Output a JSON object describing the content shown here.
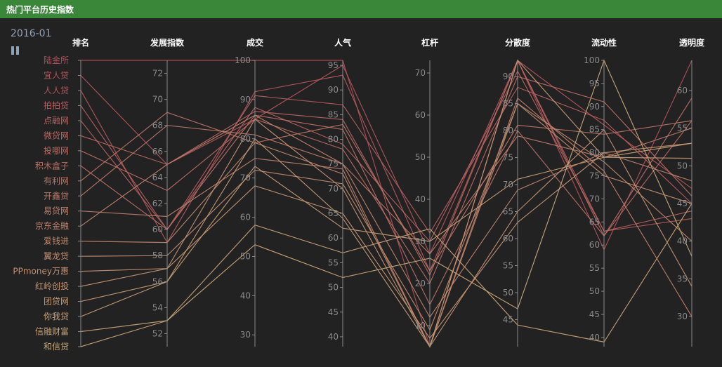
{
  "app": {
    "title": "热门平台历史指数"
  },
  "timeline": {
    "current": "2016-01",
    "pause_icon": "pause-icon"
  },
  "colors": {
    "titlebar": "#3a873a",
    "background": "#222222",
    "axis": "#8a8a8a",
    "header": "#ffffff",
    "line_high": "#b0505a",
    "line_low": "#c8a87a"
  },
  "chart_data": {
    "type": "parallel",
    "title": "",
    "axes": [
      {
        "name": "排名",
        "type": "category",
        "categories": [
          "陆金所",
          "宜人贷",
          "人人贷",
          "拍拍贷",
          "点融网",
          "微贷网",
          "投哪网",
          "积木盒子",
          "有利网",
          "开鑫贷",
          "易贷网",
          "京东金融",
          "爱钱进",
          "翼龙贷",
          "PPmoney万惠",
          "红岭创投",
          "团贷网",
          "你我贷",
          "信融财富",
          "和信贷"
        ]
      },
      {
        "name": "发展指数",
        "min": 51,
        "max": 73,
        "ticks": [
          52,
          54,
          56,
          58,
          60,
          62,
          64,
          66,
          68,
          70,
          72
        ]
      },
      {
        "name": "成交",
        "min": 27,
        "max": 100,
        "ticks": [
          30,
          40,
          50,
          60,
          70,
          80,
          90,
          100
        ]
      },
      {
        "name": "人气",
        "min": 38,
        "max": 96,
        "ticks": [
          40,
          45,
          50,
          55,
          60,
          65,
          70,
          75,
          80,
          85,
          90,
          95
        ]
      },
      {
        "name": "杠杆",
        "min": 5,
        "max": 73,
        "ticks": [
          10,
          20,
          30,
          40,
          50,
          60,
          70
        ]
      },
      {
        "name": "分散度",
        "min": 40,
        "max": 93,
        "ticks": [
          45,
          50,
          55,
          60,
          65,
          70,
          75,
          80,
          85,
          90
        ]
      },
      {
        "name": "流动性",
        "min": 38,
        "max": 100,
        "ticks": [
          40,
          45,
          50,
          55,
          60,
          65,
          70,
          75,
          80,
          85,
          90,
          95,
          100
        ]
      },
      {
        "name": "透明度",
        "min": 26,
        "max": 64,
        "ticks": [
          30,
          35,
          40,
          45,
          50,
          55,
          60
        ]
      }
    ],
    "series": [
      {
        "values": [
          0,
          73,
          100,
          96,
          5,
          93,
          59,
          64
        ]
      },
      {
        "values": [
          1,
          65,
          85,
          95,
          27,
          93,
          86,
          47
        ]
      },
      {
        "values": [
          2,
          59,
          92,
          93,
          23,
          93,
          63,
          43
        ]
      },
      {
        "values": [
          3,
          60,
          91,
          87,
          32,
          88,
          87,
          45
        ]
      },
      {
        "values": [
          4,
          60,
          88,
          79,
          30,
          91,
          63,
          44
        ]
      },
      {
        "values": [
          5,
          65,
          87,
          84,
          22,
          93,
          62,
          56
        ]
      },
      {
        "values": [
          6,
          63,
          85,
          78,
          20,
          90,
          91,
          46
        ]
      },
      {
        "values": [
          7,
          60,
          86,
          82,
          15,
          80,
          62,
          59
        ]
      },
      {
        "values": [
          8,
          69,
          79,
          83,
          23,
          81,
          84,
          56
        ]
      },
      {
        "values": [
          9,
          68,
          81,
          75,
          27,
          79,
          79,
          55
        ]
      },
      {
        "values": [
          10,
          61,
          75,
          74,
          5,
          86,
          76,
          30
        ]
      },
      {
        "values": [
          11,
          65,
          86,
          75,
          12,
          69,
          80,
          48
        ]
      },
      {
        "values": [
          12,
          59,
          79,
          73,
          5,
          85,
          78,
          40
        ]
      },
      {
        "values": [
          13,
          58,
          72,
          71,
          9,
          85,
          75,
          45
        ]
      },
      {
        "values": [
          14,
          57,
          85,
          70,
          5,
          65,
          85,
          34
        ]
      },
      {
        "values": [
          15,
          57,
          68,
          65,
          7,
          63,
          80,
          53
        ]
      },
      {
        "values": [
          16,
          56,
          80,
          64,
          5,
          93,
          79,
          51
        ]
      },
      {
        "values": [
          17,
          56,
          73,
          62,
          30,
          71,
          79,
          53
        ]
      },
      {
        "values": [
          18,
          53,
          58,
          57,
          33,
          44,
          39,
          45
        ]
      },
      {
        "values": [
          19,
          53,
          53,
          52,
          26,
          47,
          100,
          38
        ]
      }
    ]
  }
}
